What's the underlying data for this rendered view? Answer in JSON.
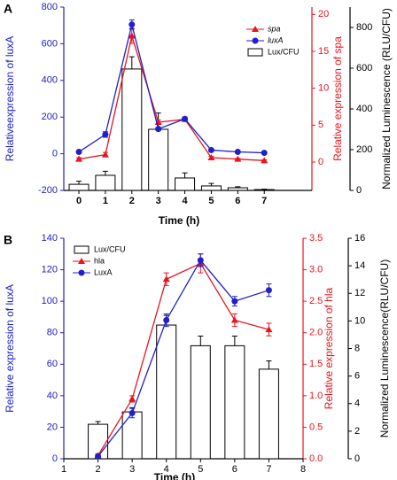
{
  "chart_data": [
    {
      "type": "combo",
      "panel_label": "A",
      "x_label": "Time (h)",
      "y_label": "Relativeexpression of luxA",
      "y2_label": "Relative expression of spa",
      "y3_label": "Normalized Luminescence (RLU/CFU)",
      "x": [
        0,
        1,
        2,
        3,
        4,
        5,
        6,
        7
      ],
      "xlim": [
        -0.57,
        8.8
      ],
      "xticks": [
        0,
        1,
        2,
        3,
        4,
        5,
        6,
        7
      ],
      "ylim": [
        -200,
        800
      ],
      "yticks": [
        -200,
        0,
        200,
        400,
        600,
        800
      ],
      "y2lim": [
        -3.84,
        21
      ],
      "y2ticks": [
        0,
        5,
        10,
        15,
        20
      ],
      "y3lim": [
        0,
        900
      ],
      "y3ticks": [
        0,
        200,
        400,
        600,
        800
      ],
      "y_color": "#2020c8",
      "y2_color": "#e8141e",
      "y3_color": "#000000",
      "legend": "upper right",
      "series": [
        {
          "name": "spa",
          "type": "line",
          "marker": "triangle",
          "axis": "y2",
          "color": "#e8141e",
          "values": [
            0.4,
            1,
            17.1,
            5.4,
            5.8,
            0.6,
            0.4,
            0.2
          ],
          "errors": [
            0.2,
            0.3,
            1,
            0.3,
            0.3,
            0.2,
            0.1,
            0.1
          ]
        },
        {
          "name": "luxA",
          "type": "line",
          "marker": "circle",
          "axis": "y",
          "color": "#2020c8",
          "values": [
            10,
            105,
            705,
            135,
            190,
            20,
            10,
            5
          ],
          "errors": [
            5,
            15,
            25,
            8,
            8,
            5,
            4,
            3
          ]
        },
        {
          "name": "Lux/CFU",
          "type": "bar",
          "axis": "y3",
          "color": "#000000",
          "values": [
            30,
            74,
            596,
            300,
            61,
            22,
            13,
            4
          ],
          "errors": [
            15,
            20,
            60,
            80,
            25,
            12,
            5,
            2
          ]
        }
      ]
    },
    {
      "type": "combo",
      "panel_label": "B",
      "x_label": "Time (h)",
      "y_label": "Relative expression of luxA",
      "y2_label": "Relative expression of hla",
      "y3_label": "Normalized Luminescence(RLU/CFU)",
      "x": [
        2,
        3,
        4,
        5,
        6,
        7
      ],
      "xlim": [
        1,
        8
      ],
      "xticks": [
        1,
        2,
        3,
        4,
        5,
        6,
        7,
        8
      ],
      "ylim": [
        0,
        140
      ],
      "yticks": [
        0,
        20,
        40,
        60,
        80,
        100,
        120,
        140
      ],
      "y2lim": [
        0,
        3.5
      ],
      "y2ticks": [
        {
          "value": 0,
          "label": "0.0"
        },
        0.5,
        {
          "value": 1,
          "label": "1.0"
        },
        1.5,
        {
          "value": 2,
          "label": "2.0"
        },
        2.5,
        {
          "value": 3,
          "label": "3.0"
        },
        3.5
      ],
      "y3lim": [
        0,
        16
      ],
      "y3ticks": [
        0,
        2,
        4,
        6,
        8,
        10,
        12,
        14,
        16
      ],
      "y_color": "#2020c8",
      "y2_color": "#e8141e",
      "y3_color": "#000000",
      "legend": "upper left",
      "series": [
        {
          "name": "Lux/CFU",
          "type": "bar",
          "axis": "y3",
          "color": "#000000",
          "values": [
            2.5,
            3.4,
            9.7,
            8.2,
            8.2,
            6.5
          ],
          "errors": [
            0.2,
            0.3,
            0.7,
            0.7,
            0.7,
            0.6
          ]
        },
        {
          "name": "hla",
          "type": "line",
          "marker": "triangle",
          "axis": "y2",
          "color": "#e8141e",
          "values": [
            0.05,
            0.95,
            2.85,
            3.1,
            2.2,
            2.05
          ],
          "errors": [
            0.03,
            0.05,
            0.1,
            0.15,
            0.1,
            0.1
          ]
        },
        {
          "name": "LuxA",
          "type": "line",
          "marker": "circle",
          "axis": "y",
          "color": "#2020c8",
          "values": [
            1.5,
            29,
            88,
            126,
            100,
            107
          ],
          "errors": [
            1,
            3,
            4,
            4,
            3,
            4
          ]
        }
      ]
    }
  ]
}
